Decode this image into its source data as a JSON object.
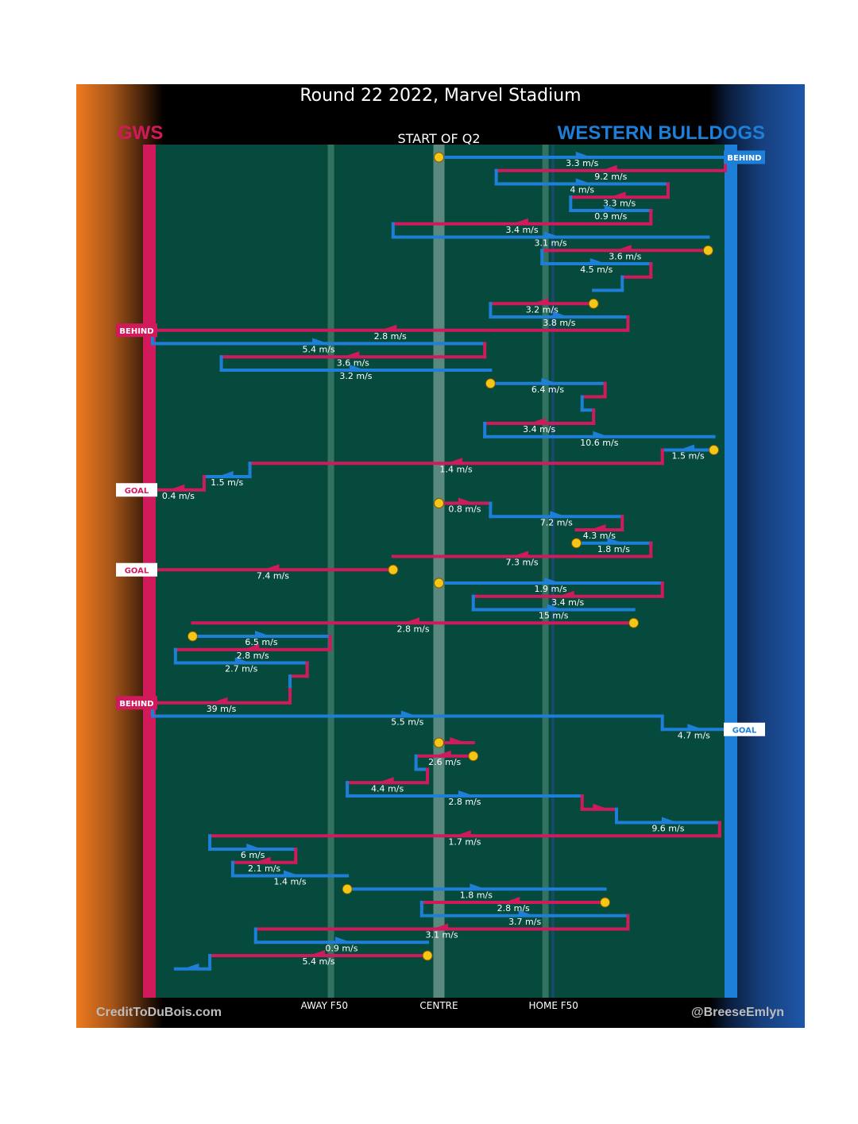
{
  "header": {
    "title": "Round 22 2022, Marvel Stadium"
  },
  "teams": {
    "left": "GWS",
    "right": "WESTERN BULLDOGS"
  },
  "colors": {
    "gws": "#d11a5c",
    "bulldogs": "#1e7fd8",
    "field": "#054a3d",
    "ball": "#f5c518"
  },
  "footer": {
    "credit_left": "CreditToDuBois.com",
    "credit_right": "@BreeseEmlyn"
  },
  "chart_data": {
    "type": "line",
    "title": "START OF Q2",
    "x_ticks": [
      "AWAY F50",
      "CENTRE",
      "HOME F50"
    ],
    "x_tick_values": [
      30,
      50,
      70
    ],
    "xlim": [
      0,
      100
    ],
    "outcomes": [
      {
        "label": "BEHIND",
        "team": "bulldogs",
        "step": 0
      },
      {
        "label": "BEHIND",
        "team": "gws",
        "step": 13
      },
      {
        "label": "GOAL",
        "team": "gws",
        "step": 25
      },
      {
        "label": "GOAL",
        "team": "gws",
        "step": 31
      },
      {
        "label": "BEHIND",
        "team": "gws",
        "step": 41
      },
      {
        "label": "GOAL",
        "team": "bulldogs",
        "step": 43
      }
    ],
    "chains": [
      {
        "team": "bulldogs",
        "from": 50,
        "to": 100,
        "y": 0,
        "speed": "3.3 m/s",
        "ball_start": true
      },
      {
        "team": "gws",
        "from": 100,
        "to": 60,
        "y": 1,
        "speed": "9.2 m/s"
      },
      {
        "team": "bulldogs",
        "from": 60,
        "to": 90,
        "y": 2,
        "speed": "4 m/s"
      },
      {
        "team": "gws",
        "from": 90,
        "to": 73,
        "y": 3,
        "speed": "3.3 m/s"
      },
      {
        "team": "bulldogs",
        "from": 73,
        "to": 87,
        "y": 4,
        "speed": "0.9 m/s"
      },
      {
        "team": "gws",
        "from": 87,
        "to": 42,
        "y": 5,
        "speed": "3.4 m/s"
      },
      {
        "team": "bulldogs",
        "from": 42,
        "to": 97,
        "y": 6,
        "speed": "3.1 m/s"
      },
      {
        "team": "gws",
        "from": 97,
        "to": 68,
        "y": 7,
        "speed": "3.6 m/s",
        "ball_start": true
      },
      {
        "team": "bulldogs",
        "from": 68,
        "to": 87,
        "y": 8,
        "speed": "4.5 m/s"
      },
      {
        "team": "gws",
        "from": 87,
        "to": 82,
        "y": 9,
        "speed": ""
      },
      {
        "team": "bulldogs",
        "from": 82,
        "to": 77,
        "y": 10,
        "speed": ""
      },
      {
        "team": "gws",
        "from": 77,
        "to": 59,
        "y": 11,
        "speed": "3.2 m/s",
        "ball_start": true
      },
      {
        "team": "bulldogs",
        "from": 59,
        "to": 83,
        "y": 12,
        "speed": "3.8 m/s"
      },
      {
        "team": "gws",
        "from": 83,
        "to": 0,
        "y": 13,
        "speed": "2.8 m/s"
      },
      {
        "team": "bulldogs",
        "from": 0,
        "to": 58,
        "y": 14,
        "speed": "5.4 m/s"
      },
      {
        "team": "gws",
        "from": 58,
        "to": 12,
        "y": 15,
        "speed": "3.6 m/s"
      },
      {
        "team": "bulldogs",
        "from": 12,
        "to": 59,
        "y": 16,
        "speed": "3.2 m/s"
      },
      {
        "team": "bulldogs",
        "from": 59,
        "to": 79,
        "y": 17,
        "speed": "6.4 m/s",
        "ball_start": true
      },
      {
        "team": "gws",
        "from": 79,
        "to": 75,
        "y": 18,
        "speed": ""
      },
      {
        "team": "bulldogs",
        "from": 75,
        "to": 77,
        "y": 19,
        "speed": ""
      },
      {
        "team": "gws",
        "from": 77,
        "to": 58,
        "y": 20,
        "speed": "3.4 m/s"
      },
      {
        "team": "bulldogs",
        "from": 58,
        "to": 98,
        "y": 21,
        "speed": "10.6 m/s"
      },
      {
        "team": "bulldogs",
        "from": 98,
        "to": 89,
        "y": 22,
        "speed": "1.5 m/s",
        "ball_start": true
      },
      {
        "team": "gws",
        "from": 89,
        "to": 17,
        "y": 23,
        "speed": "1.4 m/s"
      },
      {
        "team": "bulldogs",
        "from": 17,
        "to": 9,
        "y": 24,
        "speed": "1.5 m/s"
      },
      {
        "team": "gws",
        "from": 9,
        "to": 0,
        "y": 25,
        "speed": "0.4 m/s"
      },
      {
        "team": "gws",
        "from": 50,
        "to": 59,
        "y": 26,
        "speed": "0.8 m/s",
        "ball_start": true
      },
      {
        "team": "bulldogs",
        "from": 59,
        "to": 82,
        "y": 27,
        "speed": "7.2 m/s"
      },
      {
        "team": "gws",
        "from": 82,
        "to": 74,
        "y": 28,
        "speed": "4.3 m/s"
      },
      {
        "team": "bulldogs",
        "from": 74,
        "to": 87,
        "y": 29,
        "speed": "1.8 m/s",
        "ball_start": true
      },
      {
        "team": "gws",
        "from": 87,
        "to": 42,
        "y": 30,
        "speed": "7.3 m/s"
      },
      {
        "team": "gws",
        "from": 42,
        "to": 0,
        "y": 31,
        "speed": "7.4 m/s",
        "ball_start": true
      },
      {
        "team": "bulldogs",
        "from": 50,
        "to": 89,
        "y": 32,
        "speed": "1.9 m/s",
        "ball_start": true
      },
      {
        "team": "gws",
        "from": 89,
        "to": 56,
        "y": 33,
        "speed": "3.4 m/s"
      },
      {
        "team": "bulldogs",
        "from": 56,
        "to": 84,
        "y": 34,
        "speed": "15 m/s"
      },
      {
        "team": "gws",
        "from": 84,
        "to": 7,
        "y": 35,
        "speed": "2.8 m/s",
        "ball_start": true
      },
      {
        "team": "bulldogs",
        "from": 7,
        "to": 31,
        "y": 36,
        "speed": "6.5 m/s",
        "ball_start": true
      },
      {
        "team": "gws",
        "from": 31,
        "to": 4,
        "y": 37,
        "speed": "2.8 m/s"
      },
      {
        "team": "bulldogs",
        "from": 4,
        "to": 27,
        "y": 38,
        "speed": "2.7 m/s"
      },
      {
        "team": "gws",
        "from": 27,
        "to": 24,
        "y": 39,
        "speed": ""
      },
      {
        "team": "bulldogs",
        "from": 24,
        "to": 24,
        "y": 40,
        "speed": ""
      },
      {
        "team": "gws",
        "from": 24,
        "to": 0,
        "y": 41,
        "speed": "39 m/s"
      },
      {
        "team": "bulldogs",
        "from": 0,
        "to": 89,
        "y": 42,
        "speed": "5.5 m/s"
      },
      {
        "team": "bulldogs",
        "from": 89,
        "to": 100,
        "y": 43,
        "speed": "4.7 m/s"
      },
      {
        "team": "gws",
        "from": 50,
        "to": 56,
        "y": 44,
        "speed": "",
        "ball_start": true
      },
      {
        "team": "gws",
        "from": 56,
        "to": 46,
        "y": 45,
        "speed": "2.6 m/s",
        "ball_start": true
      },
      {
        "team": "bulldogs",
        "from": 46,
        "to": 48,
        "y": 46,
        "speed": ""
      },
      {
        "team": "gws",
        "from": 48,
        "to": 34,
        "y": 47,
        "speed": "4.4 m/s"
      },
      {
        "team": "bulldogs",
        "from": 34,
        "to": 75,
        "y": 48,
        "speed": "2.8 m/s"
      },
      {
        "team": "gws",
        "from": 75,
        "to": 81,
        "y": 49,
        "speed": ""
      },
      {
        "team": "bulldogs",
        "from": 81,
        "to": 99,
        "y": 50,
        "speed": "9.6 m/s"
      },
      {
        "team": "gws",
        "from": 99,
        "to": 10,
        "y": 51,
        "speed": "1.7 m/s"
      },
      {
        "team": "bulldogs",
        "from": 10,
        "to": 25,
        "y": 52,
        "speed": "6 m/s"
      },
      {
        "team": "gws",
        "from": 25,
        "to": 14,
        "y": 53,
        "speed": "2.1 m/s"
      },
      {
        "team": "bulldogs",
        "from": 14,
        "to": 34,
        "y": 54,
        "speed": "1.4 m/s"
      },
      {
        "team": "bulldogs",
        "from": 34,
        "to": 79,
        "y": 55,
        "speed": "1.8 m/s",
        "ball_start": true
      },
      {
        "team": "gws",
        "from": 79,
        "to": 47,
        "y": 56,
        "speed": "2.8 m/s",
        "ball_start": true
      },
      {
        "team": "bulldogs",
        "from": 47,
        "to": 83,
        "y": 57,
        "speed": "3.7 m/s"
      },
      {
        "team": "gws",
        "from": 83,
        "to": 18,
        "y": 58,
        "speed": "3.1 m/s"
      },
      {
        "team": "bulldogs",
        "from": 18,
        "to": 48,
        "y": 59,
        "speed": "0.9 m/s"
      },
      {
        "team": "gws",
        "from": 48,
        "to": 10,
        "y": 60,
        "speed": "5.4 m/s",
        "ball_start": true
      },
      {
        "team": "bulldogs",
        "from": 10,
        "to": 4,
        "y": 61,
        "speed": ""
      }
    ]
  }
}
